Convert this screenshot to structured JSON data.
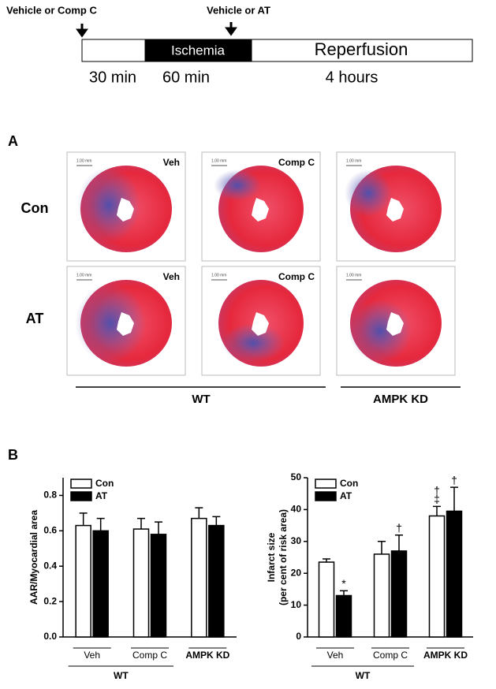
{
  "protocol": {
    "arrow_labels": [
      "Vehicle or Comp C",
      "Vehicle or AT"
    ],
    "phases": [
      "Ischemia",
      "Reperfusion"
    ],
    "durations": [
      "30 min",
      "60 min",
      "4 hours"
    ]
  },
  "panel_a": {
    "letter": "A",
    "rows": [
      "Con",
      "AT"
    ],
    "column_labels": [
      "Veh",
      "Comp C"
    ],
    "scale_bar": "1.00 mm",
    "groups": [
      "WT",
      "AMPK KD"
    ]
  },
  "panel_b": {
    "letter": "B"
  },
  "chart_data": [
    {
      "type": "bar",
      "ylabel": [
        "AAR/Myocardial area"
      ],
      "categories": [
        "Veh",
        "Comp C",
        "AMPK KD"
      ],
      "group_label": "WT",
      "series": [
        {
          "name": "Con",
          "color": "#ffffff",
          "values": [
            0.63,
            0.61,
            0.67
          ],
          "errors": [
            0.07,
            0.06,
            0.06
          ]
        },
        {
          "name": "AT",
          "color": "#000000",
          "values": [
            0.6,
            0.58,
            0.63
          ],
          "errors": [
            0.07,
            0.07,
            0.05
          ]
        }
      ],
      "ylim": [
        0,
        0.9
      ],
      "yticks": [
        {
          "value": 0,
          "label": "0.0"
        },
        0.2,
        0.4,
        0.6,
        0.8
      ]
    },
    {
      "type": "bar",
      "ylabel": [
        "Infarct size",
        "(per cent of risk area)"
      ],
      "categories": [
        "Veh",
        "Comp C",
        "AMPK KD"
      ],
      "group_label": "WT",
      "series": [
        {
          "name": "Con",
          "color": "#ffffff",
          "values": [
            23.5,
            26,
            38
          ],
          "errors": [
            1,
            4,
            3
          ]
        },
        {
          "name": "AT",
          "color": "#000000",
          "values": [
            13,
            27,
            39.5
          ],
          "errors": [
            1.5,
            5,
            7.5
          ]
        }
      ],
      "ylim": [
        0,
        50
      ],
      "yticks": [
        0,
        10,
        20,
        30,
        40,
        50
      ],
      "annotations": [
        {
          "text": "*",
          "series": 1,
          "category": 0
        },
        {
          "text": "†",
          "series": 1,
          "category": 1
        },
        {
          "text": "‡",
          "series": 0,
          "category": 2
        },
        {
          "text": "†",
          "series": 0,
          "category": 2
        },
        {
          "text": "†",
          "series": 1,
          "category": 2
        }
      ]
    }
  ]
}
